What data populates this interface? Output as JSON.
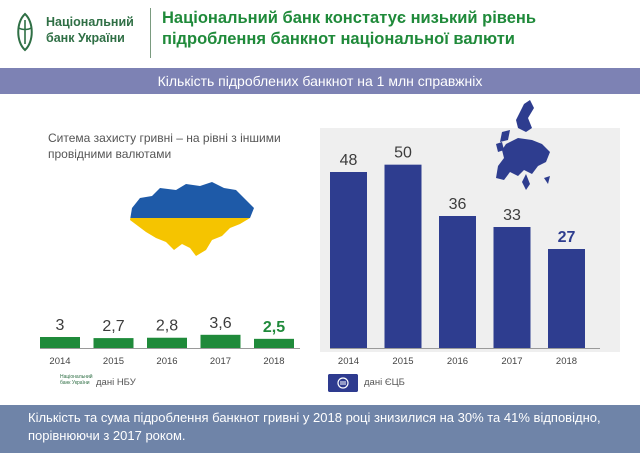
{
  "header": {
    "logo_line1": "Національний",
    "logo_line2": "банк України",
    "title": "Національний банк констатує низький рівень підроблення банкнот національної валюти"
  },
  "subtitle": "Кількість підроблених банкнот на 1 млн справжніх",
  "note": "Ситема захисту гривні – на рівні з іншими провідними валютами",
  "colors": {
    "ua_bar": "#1f8a3a",
    "eu_bar": "#2e3d8f",
    "header_green": "#1f8a3a",
    "subtitle_bg": "#7d82b4",
    "footer_bg": "#6f84a8",
    "ua_yellow": "#f5c400",
    "ua_blue": "#1e5aa8"
  },
  "icons": {
    "ukraine_map": "ukraine-map-icon",
    "europe_map": "europe-map-icon",
    "nbu_logo": "nbu-logo-icon",
    "ecb_logo": "ecb-logo-icon"
  },
  "chart_data": [
    {
      "type": "bar",
      "categories": [
        "2014",
        "2015",
        "2016",
        "2017",
        "2018"
      ],
      "values": [
        3,
        2.7,
        2.8,
        3.6,
        2.5
      ],
      "value_labels": [
        "3",
        "2,7",
        "2,8",
        "3,6",
        "2,5"
      ],
      "ylim": [
        0,
        60
      ],
      "grid": false,
      "source": "дані НБУ"
    },
    {
      "type": "bar",
      "categories": [
        "2014",
        "2015",
        "2016",
        "2017",
        "2018"
      ],
      "values": [
        48,
        50,
        36,
        33,
        27
      ],
      "value_labels": [
        "48",
        "50",
        "36",
        "33",
        "27"
      ],
      "ylim": [
        0,
        60
      ],
      "grid": false,
      "source": "дані ЄЦБ"
    }
  ],
  "footer": "Кількість та сума підроблення банкнот гривні  у 2018 році знизилися на 30% та 41% відповідно, порівнюючи з 2017 роком."
}
